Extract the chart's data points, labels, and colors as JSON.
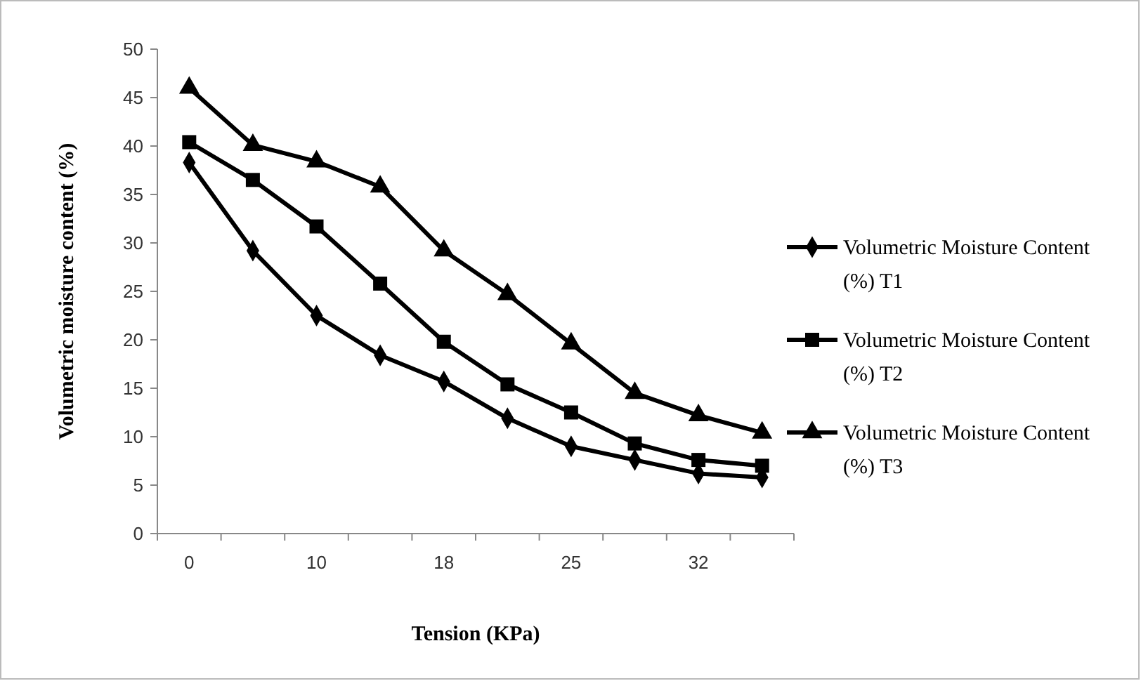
{
  "chart_data": {
    "type": "line",
    "xlabel": "Tension (KPa)",
    "ylabel": "Volumetric moisture content (%)",
    "categories": [
      "0",
      null,
      "10",
      null,
      "18",
      null,
      "25",
      null,
      "32",
      null
    ],
    "ylim": [
      0,
      50
    ],
    "yticks": [
      0,
      5,
      10,
      15,
      20,
      25,
      30,
      35,
      40,
      45,
      50
    ],
    "grid": false,
    "legend": "right",
    "line_style": "solid",
    "series": [
      {
        "name": "Volumetric Moisture Content (%) T1",
        "color": "#000000",
        "marker": "diamond",
        "values": [
          38.3,
          29.2,
          22.5,
          18.4,
          15.7,
          11.9,
          9.0,
          7.6,
          6.2,
          5.8
        ]
      },
      {
        "name": "Volumetric Moisture Content (%) T2",
        "color": "#000000",
        "marker": "square",
        "values": [
          40.4,
          36.5,
          31.7,
          25.8,
          19.8,
          15.4,
          12.5,
          9.3,
          7.6,
          7.0
        ]
      },
      {
        "name": "Volumetric Moisture Content (%) T3",
        "color": "#000000",
        "marker": "triangle",
        "values": [
          46.0,
          40.1,
          38.4,
          35.8,
          29.2,
          24.7,
          19.6,
          14.5,
          12.2,
          10.4
        ]
      }
    ]
  }
}
